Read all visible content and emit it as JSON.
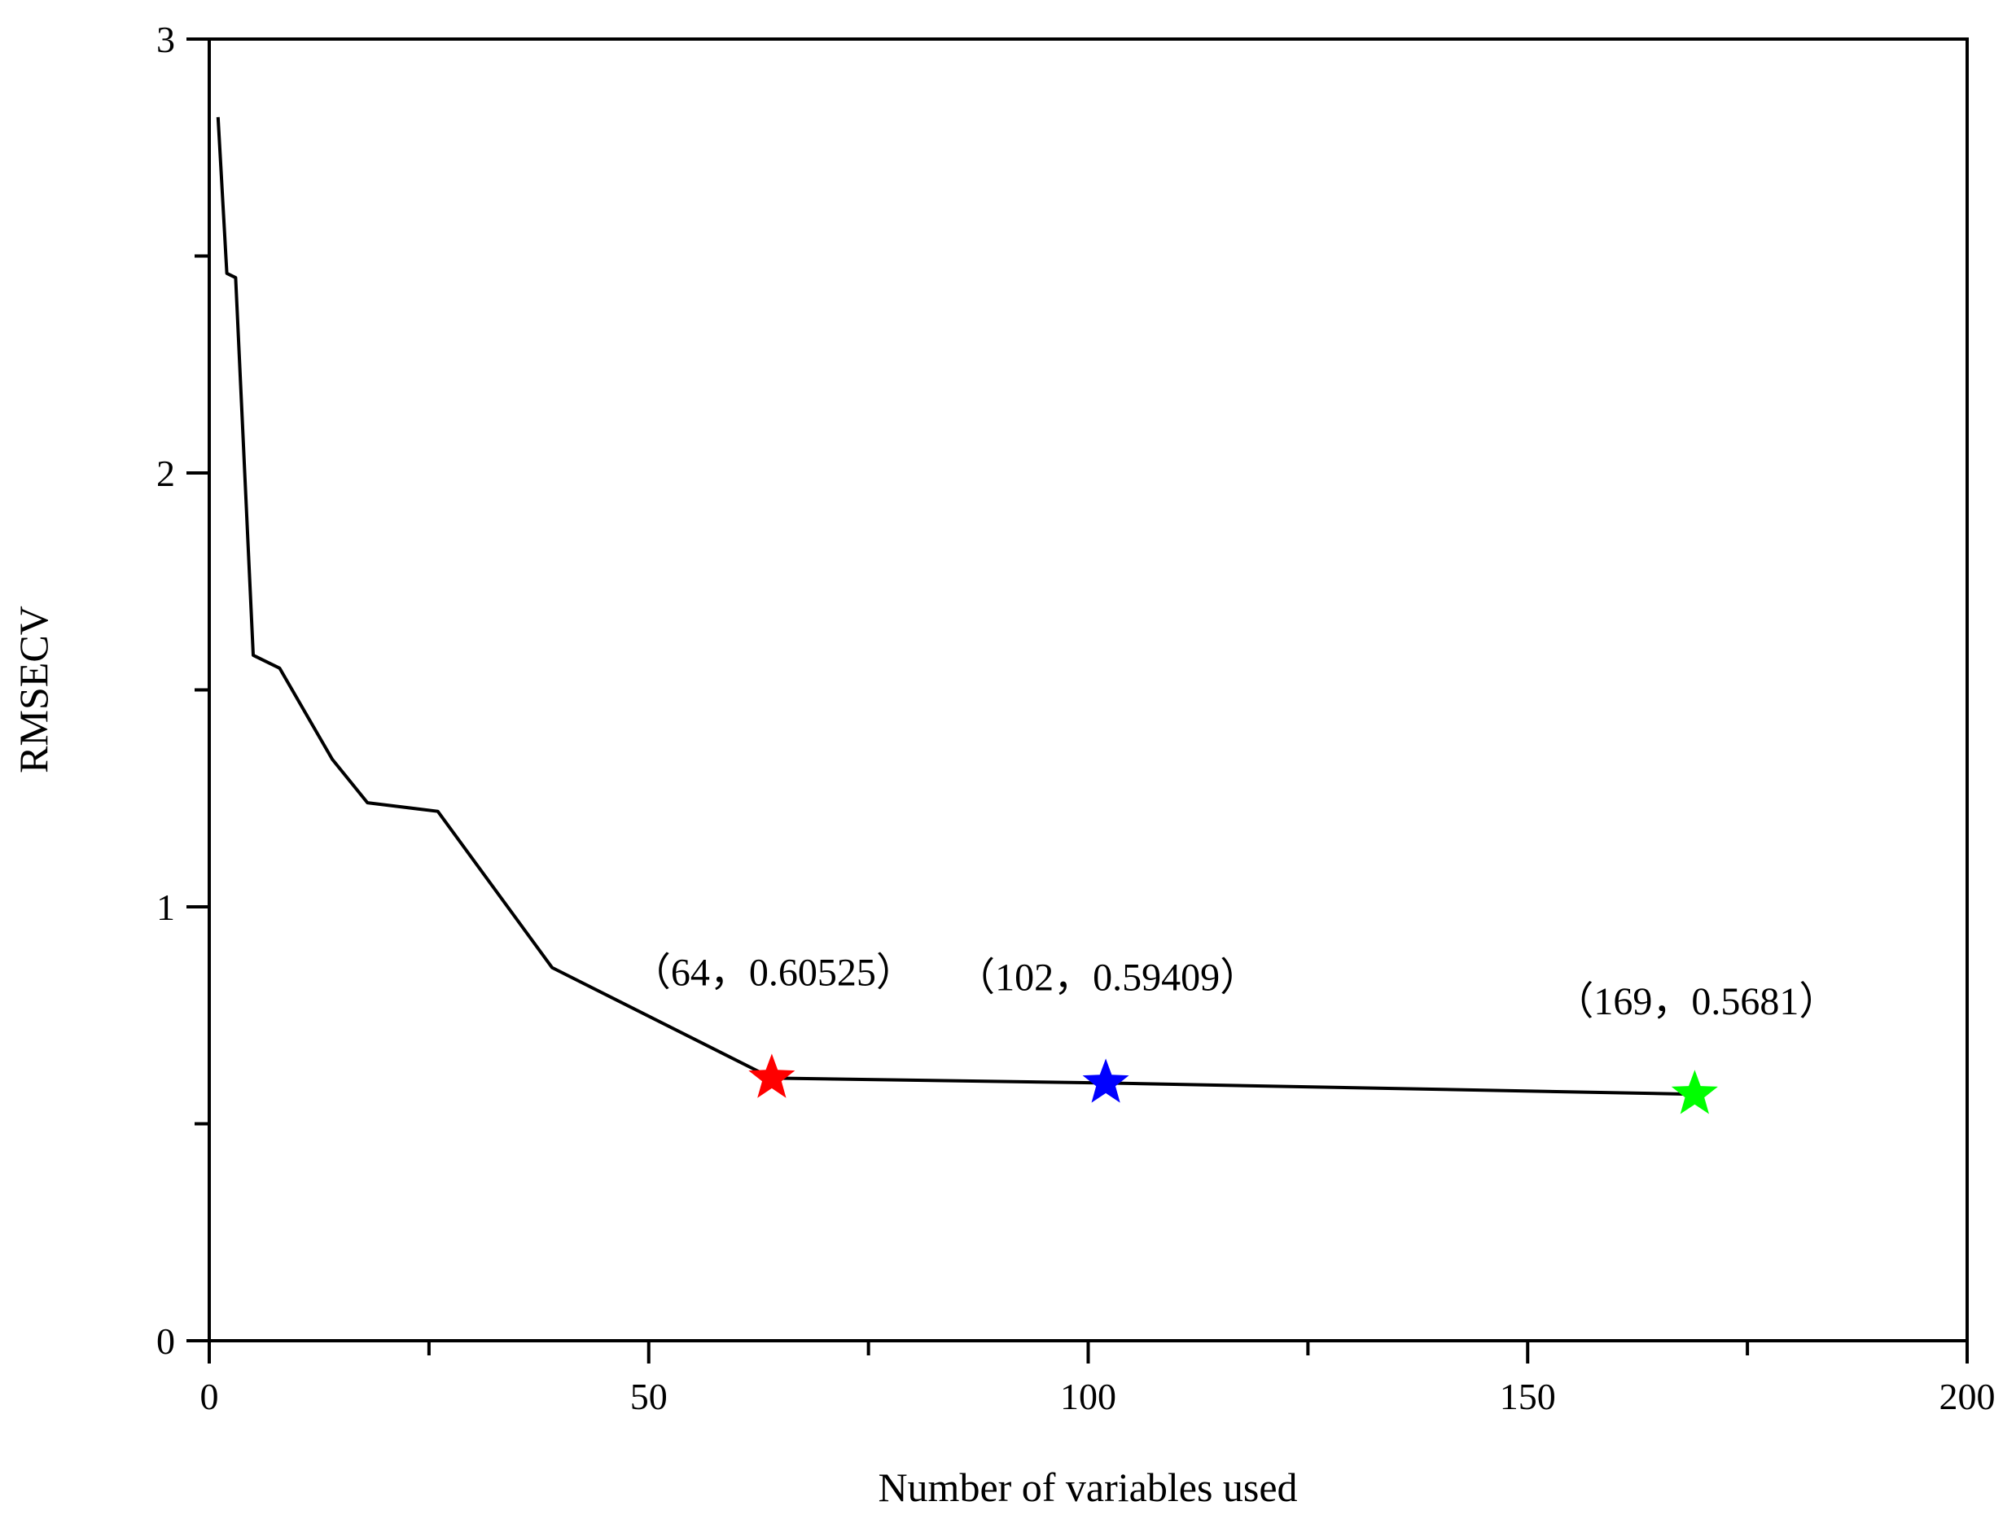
{
  "chart_data": {
    "type": "line",
    "title": "",
    "xlabel": "Number of variables used",
    "ylabel": "RMSECV",
    "xlim": [
      0,
      200
    ],
    "ylim": [
      0,
      3
    ],
    "x_ticks": [
      0,
      50,
      100,
      150,
      200
    ],
    "x_tick_labels": [
      "0",
      "50",
      "100",
      "150",
      "200"
    ],
    "x_minor_ticks": [
      25,
      75,
      125,
      175
    ],
    "y_ticks": [
      0,
      1,
      2,
      3
    ],
    "y_tick_labels": [
      "0",
      "1",
      "2",
      "3"
    ],
    "y_minor_ticks": [
      0.5,
      1.5,
      2.5
    ],
    "grid": false,
    "legend": "none",
    "series": [
      {
        "color": "#000000",
        "x": [
          1,
          2,
          3,
          5,
          8,
          14,
          18,
          26,
          39,
          64,
          102,
          169
        ],
        "y": [
          2.82,
          2.46,
          2.45,
          1.58,
          1.55,
          1.34,
          1.24,
          1.22,
          0.86,
          0.60525,
          0.59409,
          0.5681
        ]
      }
    ],
    "markers": [
      {
        "x": 64,
        "y": 0.60525,
        "color": "#ff0000",
        "shape": "star",
        "label": "（64，0.60525）"
      },
      {
        "x": 102,
        "y": 0.59409,
        "color": "#0000ff",
        "shape": "star",
        "label": "（102，0.59409）"
      },
      {
        "x": 169,
        "y": 0.5681,
        "color": "#00ff00",
        "shape": "star",
        "label": "（169，0.5681）"
      }
    ]
  }
}
